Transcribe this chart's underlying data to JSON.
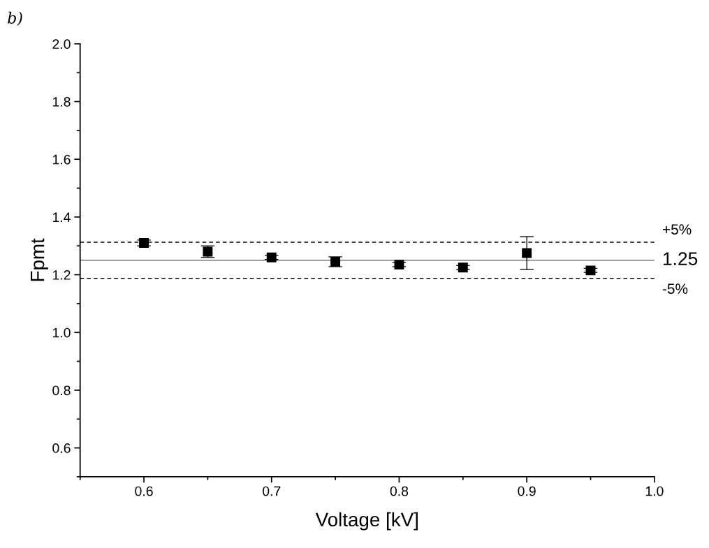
{
  "chart_data": {
    "type": "scatter",
    "xlabel": "Voltage [kV]",
    "ylabel": "Fpmt",
    "annotations": [
      "b)",
      {
        "text": "+5%",
        "x": 1.0,
        "y": 1.3125
      },
      {
        "text": "-5%",
        "x": 1.0,
        "y": 1.1875
      }
    ],
    "x": [
      0.6,
      0.65,
      0.7,
      0.75,
      0.8,
      0.85,
      0.9,
      0.95
    ],
    "series": [
      {
        "color": "#000000",
        "values": [
          1.31,
          1.28,
          1.26,
          1.245,
          1.235,
          1.225,
          1.275,
          1.215
        ],
        "errors": [
          0.01,
          0.02,
          0.007,
          0.017,
          0.007,
          0.007,
          0.057,
          0.007
        ]
      }
    ],
    "marker": "square",
    "grid": false,
    "legend": false,
    "xlim": [
      0.55,
      1.0
    ],
    "xticks": [
      0.6,
      0.7,
      0.8,
      0.9,
      {
        "value": 1.0,
        "label": "1.0"
      }
    ],
    "ylim": [
      0.5,
      2.0
    ],
    "yticks": [
      0.6,
      0.8,
      {
        "value": 1.0,
        "label": "1.0"
      },
      1.2,
      1.4,
      1.6,
      1.8,
      {
        "value": 2.0,
        "label": "2.0"
      }
    ],
    "ref_lines": [
      {
        "axis": "y",
        "value": 1.25,
        "label": "1.25",
        "color": "#606060",
        "line_style": "solid"
      },
      {
        "axis": "y",
        "value": 1.3125,
        "color": "#000000",
        "line_style": "dashed"
      },
      {
        "axis": "y",
        "value": 1.1875,
        "color": "#000000",
        "line_style": "dashed"
      }
    ]
  }
}
